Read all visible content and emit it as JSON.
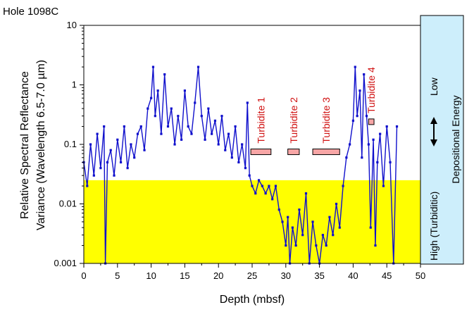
{
  "chart_data": {
    "type": "line",
    "hole_label": "Hole 1098C",
    "xlabel": "Depth (mbsf)",
    "ylabel_line1": "Relative  Spectral  Reflectance",
    "ylabel_line2": "Variance (Wavelength 6.5-7.0 µm)",
    "xlim": [
      0,
      50
    ],
    "ylim": [
      0.001,
      10
    ],
    "y_scale": "log",
    "x_ticks": [
      "0",
      "5",
      "10",
      "15",
      "20",
      "25",
      "30",
      "35",
      "40",
      "45",
      "50"
    ],
    "x_tick_values": [
      0,
      5,
      10,
      15,
      20,
      25,
      30,
      35,
      40,
      45,
      50
    ],
    "y_ticks": [
      "0.001",
      "0.01",
      "0.1",
      "1",
      "10"
    ],
    "y_tick_values": [
      0.001,
      0.01,
      0.1,
      1,
      10
    ],
    "background_band": {
      "color": "#ffff00",
      "y_from": 0.001,
      "y_to": 0.025,
      "x_from": 0,
      "x_to": 50
    },
    "line_color": "#1010cc",
    "series": [
      {
        "x": [
          0,
          0.5,
          1,
          1.5,
          2,
          2.5,
          3,
          3.2,
          3.5,
          4,
          4.5,
          5,
          5.5,
          6,
          6.5,
          7,
          7.5,
          8,
          8.5,
          9,
          9.5,
          10,
          10.3,
          10.6,
          11,
          11.5,
          12,
          12.5,
          13,
          13.5,
          14,
          14.5,
          15,
          15.5,
          16,
          16.5,
          17,
          17.5,
          18,
          18.5,
          19,
          19.5,
          20,
          20.5,
          21,
          21.5,
          22,
          22.5,
          23,
          23.5,
          24,
          24.3,
          24.6,
          25,
          25.5,
          26,
          26.5,
          27,
          27.5,
          28,
          28.5,
          29,
          29.5,
          30,
          30.3,
          30.6,
          31,
          31.5,
          32,
          32.5,
          33,
          33.5,
          34,
          34.5,
          35,
          35.5,
          36,
          36.5,
          37,
          37.5,
          38,
          38.5,
          39,
          39.5,
          40,
          40.3,
          40.6,
          41,
          41.3,
          41.6,
          42,
          42.3,
          42.6,
          43,
          43.3,
          43.6,
          44,
          44.5,
          45,
          45.5,
          46,
          46.5
        ],
        "y": [
          0.05,
          0.02,
          0.1,
          0.03,
          0.15,
          0.04,
          0.2,
          0.001,
          0.05,
          0.08,
          0.03,
          0.12,
          0.05,
          0.2,
          0.04,
          0.1,
          0.06,
          0.15,
          0.2,
          0.08,
          0.4,
          0.6,
          2.0,
          0.3,
          0.8,
          0.15,
          1.5,
          0.2,
          0.4,
          0.1,
          0.3,
          0.12,
          0.8,
          0.2,
          0.15,
          0.5,
          2.0,
          0.3,
          0.12,
          0.4,
          0.15,
          0.25,
          0.1,
          0.3,
          0.08,
          0.15,
          0.06,
          0.2,
          0.05,
          0.1,
          0.04,
          0.5,
          0.03,
          0.02,
          0.015,
          0.025,
          0.02,
          0.015,
          0.02,
          0.012,
          0.02,
          0.008,
          0.005,
          0.002,
          0.006,
          0.001,
          0.004,
          0.002,
          0.008,
          0.003,
          0.015,
          0.001,
          0.005,
          0.002,
          0.001,
          0.003,
          0.002,
          0.006,
          0.003,
          0.01,
          0.004,
          0.02,
          0.06,
          0.1,
          0.25,
          2.0,
          0.3,
          0.8,
          0.06,
          1.5,
          0.3,
          0.1,
          0.004,
          0.12,
          0.002,
          0.05,
          0.15,
          0.02,
          0.2,
          0.05,
          0.001,
          0.2
        ]
      }
    ],
    "annotations": [
      {
        "label": "Turbidite 1",
        "x_from": 24.8,
        "x_to": 27.8,
        "y": 0.075
      },
      {
        "label": "Turbidite 2",
        "x_from": 30.3,
        "x_to": 32.0,
        "y": 0.075
      },
      {
        "label": "Turbidite 3",
        "x_from": 34.0,
        "x_to": 38.0,
        "y": 0.075
      },
      {
        "label": "Turbidite 4",
        "x_from": 42.3,
        "x_to": 43.1,
        "y": 0.24
      }
    ],
    "side_panel": {
      "color": "#cdeefb",
      "low_label": "Low",
      "high_label": "High (Turbiditic)",
      "energy_label": "Depositional Energy"
    }
  }
}
